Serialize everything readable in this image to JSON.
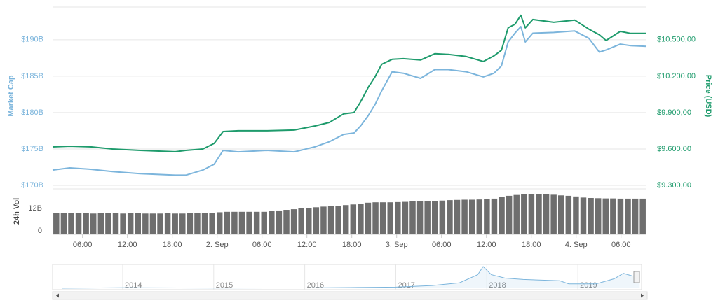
{
  "chart_data": [
    {
      "type": "line",
      "ylabel": "Market Cap",
      "y2label": "Price (USD)",
      "x": [
        2.0,
        4.3,
        7.2,
        10.0,
        13.7,
        18.4,
        19.8,
        22.1,
        23.6,
        24.8,
        26.8,
        30.6,
        34.3,
        37.1,
        39.0,
        40.9,
        42.3,
        43.2,
        44.2,
        45.1,
        46.0,
        47.4,
        48.9,
        51.2,
        53.1,
        54.9,
        57.3,
        59.6,
        61.0,
        62.0,
        62.9,
        63.8,
        64.6,
        65.2,
        66.2,
        69.0,
        71.8,
        73.7,
        75.1,
        76.0,
        77.9,
        79.3,
        81.4
      ],
      "xlim": [
        2,
        81.4
      ],
      "xticks": [
        {
          "value": 6,
          "label": "06:00"
        },
        {
          "value": 12,
          "label": "12:00"
        },
        {
          "value": 18,
          "label": "18:00"
        },
        {
          "value": 24,
          "label": "2. Sep"
        },
        {
          "value": 30,
          "label": "06:00"
        },
        {
          "value": 36,
          "label": "12:00"
        },
        {
          "value": 42,
          "label": "18:00"
        },
        {
          "value": 48,
          "label": "3. Sep"
        },
        {
          "value": 54,
          "label": "06:00"
        },
        {
          "value": 60,
          "label": "12:00"
        },
        {
          "value": 66,
          "label": "18:00"
        },
        {
          "value": 72,
          "label": "4. Sep"
        },
        {
          "value": 78,
          "label": "06:00"
        }
      ],
      "ylim": [
        170,
        194.5
      ],
      "yticks": [
        {
          "value": 170,
          "label": "$170B"
        },
        {
          "value": 175,
          "label": "$175B"
        },
        {
          "value": 180,
          "label": "$180B"
        },
        {
          "value": 185,
          "label": "$185B"
        },
        {
          "value": 190,
          "label": "$190B"
        }
      ],
      "y2lim": [
        9300,
        10770
      ],
      "y2ticks": [
        {
          "value": 9300,
          "label": "$9.300,00"
        },
        {
          "value": 9600,
          "label": "$9.600,00"
        },
        {
          "value": 9900,
          "label": "$9.900,00"
        },
        {
          "value": 10200,
          "label": "$10.200,00"
        },
        {
          "value": 10500,
          "label": "$10.500,00"
        }
      ],
      "grid": true,
      "series": [
        {
          "color": "#7cb5dc",
          "axis": "y",
          "values": [
            172.1,
            172.4,
            172.2,
            171.9,
            171.6,
            171.4,
            171.4,
            172.1,
            172.9,
            174.8,
            174.6,
            174.8,
            174.6,
            175.3,
            176.0,
            177.0,
            177.2,
            178.2,
            179.6,
            181.1,
            183.0,
            185.6,
            185.4,
            184.7,
            185.9,
            185.9,
            185.6,
            184.9,
            185.4,
            186.4,
            189.7,
            190.9,
            191.8,
            189.7,
            190.9,
            191.0,
            191.2,
            190.2,
            188.3,
            188.6,
            189.4,
            189.2,
            189.1
          ]
        },
        {
          "color": "#1e9b6c",
          "axis": "y2",
          "values": [
            9617,
            9623,
            9617,
            9600,
            9588,
            9577,
            9588,
            9600,
            9646,
            9744,
            9750,
            9750,
            9756,
            9790,
            9819,
            9889,
            9900,
            9992,
            10108,
            10194,
            10298,
            10339,
            10344,
            10333,
            10385,
            10379,
            10362,
            10321,
            10367,
            10414,
            10598,
            10627,
            10702,
            10598,
            10667,
            10644,
            10662,
            10587,
            10541,
            10494,
            10569,
            10552,
            10552
          ]
        }
      ]
    },
    {
      "type": "bar",
      "ylabel": "24h Vol",
      "color": "#6e6e6e",
      "x": [
        2,
        3,
        4,
        5,
        6,
        7,
        8,
        9,
        10,
        11,
        12,
        13,
        14,
        15,
        16,
        17,
        18,
        19,
        20,
        21,
        22,
        23,
        24,
        25,
        26,
        27,
        28,
        29,
        30,
        31,
        32,
        33,
        34,
        35,
        36,
        37,
        38,
        39,
        40,
        41,
        42,
        43,
        44,
        45,
        46,
        47,
        48,
        49,
        50,
        51,
        52,
        53,
        54,
        55,
        56,
        57,
        58,
        59,
        60,
        61,
        62,
        63,
        64,
        65,
        66,
        67,
        68,
        69,
        70,
        71,
        72,
        73,
        74,
        75,
        76,
        77,
        78,
        79,
        80,
        81
      ],
      "values": [
        9.7,
        9.7,
        9.8,
        9.7,
        9.7,
        9.6,
        9.7,
        9.7,
        9.7,
        9.6,
        9.7,
        9.7,
        9.6,
        9.6,
        9.6,
        9.7,
        9.6,
        9.6,
        9.7,
        9.8,
        9.9,
        10.0,
        10.2,
        10.4,
        10.4,
        10.4,
        10.4,
        10.4,
        10.4,
        10.8,
        11.0,
        11.3,
        11.6,
        12.0,
        12.2,
        12.5,
        12.8,
        13.0,
        13.2,
        13.5,
        13.8,
        14.2,
        14.6,
        14.8,
        14.8,
        14.8,
        14.9,
        15.0,
        15.2,
        15.3,
        15.4,
        15.5,
        15.6,
        15.8,
        15.9,
        16.0,
        16.0,
        16.1,
        16.2,
        16.5,
        17.2,
        17.8,
        18.2,
        18.5,
        18.6,
        18.6,
        18.5,
        18.3,
        18.0,
        17.8,
        17.5,
        17.0,
        16.8,
        16.7,
        16.6,
        16.6,
        16.5,
        16.5,
        16.5,
        16.5
      ],
      "xlim": [
        1.5,
        81.5
      ],
      "ylim": [
        0,
        21
      ],
      "yticks": [
        0,
        {
          "value": 12,
          "label": "12B"
        }
      ]
    },
    {
      "type": "line",
      "color": "#7cb5dc",
      "x": [
        2013.33,
        2014.0,
        2015.0,
        2016.0,
        2016.5,
        2017.0,
        2017.4,
        2017.7,
        2017.9,
        2017.96,
        2018.05,
        2018.2,
        2018.4,
        2018.8,
        2018.9,
        2019.2,
        2019.4,
        2019.5,
        2019.6,
        2019.68
      ],
      "values": [
        1,
        8,
        4,
        5,
        10,
        16,
        40,
        80,
        200,
        320,
        200,
        150,
        130,
        110,
        65,
        65,
        140,
        220,
        180,
        185
      ],
      "xlim": [
        2013.23,
        2019.7
      ],
      "xticks": [
        2014,
        2015,
        2016,
        2017,
        2018,
        2019
      ],
      "ylim": [
        0,
        330
      ]
    }
  ]
}
